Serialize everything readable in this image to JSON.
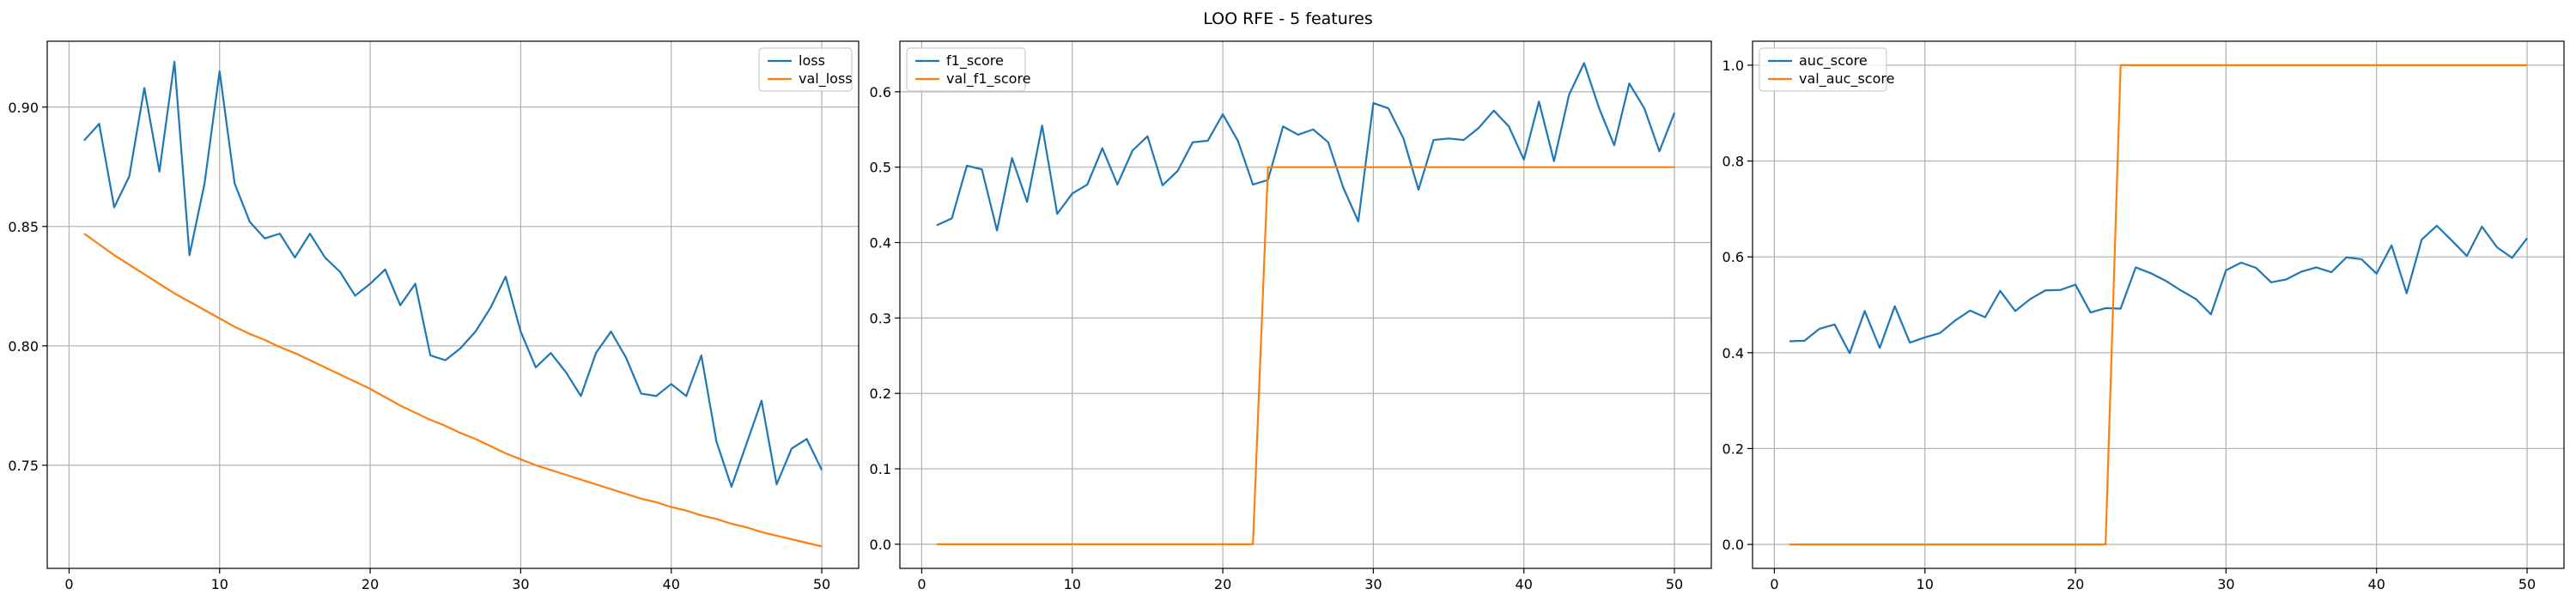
{
  "figure": {
    "title": "LOO RFE - 5 features"
  },
  "chart_data": [
    {
      "type": "line",
      "title": "",
      "xlabel": "",
      "ylabel": "",
      "xlim": [
        -1.45,
        52.45
      ],
      "ylim": [
        0.7068,
        0.9276
      ],
      "xticks": [
        0,
        10,
        20,
        30,
        40,
        50
      ],
      "yticks": [
        0.75,
        0.8,
        0.85,
        0.9
      ],
      "ytick_labels": [
        "0.75",
        "0.80",
        "0.85",
        "0.90"
      ],
      "grid": true,
      "legend_position": "top-right",
      "x": [
        1,
        2,
        3,
        4,
        5,
        6,
        7,
        8,
        9,
        10,
        11,
        12,
        13,
        14,
        15,
        16,
        17,
        18,
        19,
        20,
        21,
        22,
        23,
        24,
        25,
        26,
        27,
        28,
        29,
        30,
        31,
        32,
        33,
        34,
        35,
        36,
        37,
        38,
        39,
        40,
        41,
        42,
        43,
        44,
        45,
        46,
        47,
        48,
        49,
        50
      ],
      "series": [
        {
          "name": "loss",
          "color": "#1f77b4",
          "values": [
            0.886,
            0.893,
            0.858,
            0.871,
            0.908,
            0.873,
            0.919,
            0.838,
            0.868,
            0.915,
            0.868,
            0.852,
            0.845,
            0.847,
            0.837,
            0.847,
            0.837,
            0.831,
            0.821,
            0.826,
            0.832,
            0.817,
            0.826,
            0.796,
            0.794,
            0.799,
            0.806,
            0.816,
            0.829,
            0.806,
            0.791,
            0.797,
            0.789,
            0.779,
            0.797,
            0.806,
            0.795,
            0.78,
            0.779,
            0.784,
            0.779,
            0.796,
            0.76,
            0.741,
            0.759,
            0.777,
            0.742,
            0.757,
            0.761,
            0.748
          ]
        },
        {
          "name": "val_loss",
          "color": "#ff7f0e",
          "values": [
            0.847,
            0.8425,
            0.838,
            0.834,
            0.83,
            0.826,
            0.822,
            0.8185,
            0.815,
            0.8115,
            0.808,
            0.805,
            0.8025,
            0.7995,
            0.797,
            0.794,
            0.791,
            0.788,
            0.785,
            0.782,
            0.7785,
            0.775,
            0.772,
            0.769,
            0.7665,
            0.7635,
            0.761,
            0.758,
            0.755,
            0.7525,
            0.75,
            0.748,
            0.746,
            0.744,
            0.742,
            0.74,
            0.738,
            0.736,
            0.7345,
            0.7325,
            0.731,
            0.729,
            0.7275,
            0.7255,
            0.724,
            0.722,
            0.7205,
            0.719,
            0.7175,
            0.716
          ]
        }
      ]
    },
    {
      "type": "line",
      "title": "",
      "xlabel": "",
      "ylabel": "",
      "xlim": [
        -1.45,
        52.45
      ],
      "ylim": [
        -0.032,
        0.667
      ],
      "xticks": [
        0,
        10,
        20,
        30,
        40,
        50
      ],
      "yticks": [
        0.0,
        0.1,
        0.2,
        0.3,
        0.4,
        0.5,
        0.6
      ],
      "ytick_labels": [
        "0.0",
        "0.1",
        "0.2",
        "0.3",
        "0.4",
        "0.5",
        "0.6"
      ],
      "grid": true,
      "legend_position": "top-left",
      "x": [
        1,
        2,
        3,
        4,
        5,
        6,
        7,
        8,
        9,
        10,
        11,
        12,
        13,
        14,
        15,
        16,
        17,
        18,
        19,
        20,
        21,
        22,
        23,
        24,
        25,
        26,
        27,
        28,
        29,
        30,
        31,
        32,
        33,
        34,
        35,
        36,
        37,
        38,
        39,
        40,
        41,
        42,
        43,
        44,
        45,
        46,
        47,
        48,
        49,
        50
      ],
      "series": [
        {
          "name": "f1_score",
          "color": "#1f77b4",
          "values": [
            0.423,
            0.432,
            0.502,
            0.497,
            0.416,
            0.512,
            0.454,
            0.555,
            0.438,
            0.465,
            0.477,
            0.525,
            0.477,
            0.522,
            0.541,
            0.476,
            0.495,
            0.533,
            0.535,
            0.57,
            0.535,
            0.477,
            0.483,
            0.554,
            0.543,
            0.55,
            0.533,
            0.473,
            0.428,
            0.585,
            0.578,
            0.538,
            0.47,
            0.536,
            0.538,
            0.536,
            0.552,
            0.575,
            0.554,
            0.51,
            0.587,
            0.508,
            0.596,
            0.638,
            0.578,
            0.529,
            0.611,
            0.578,
            0.521,
            0.572
          ]
        },
        {
          "name": "val_f1_score",
          "color": "#ff7f0e",
          "values": [
            0,
            0,
            0,
            0,
            0,
            0,
            0,
            0,
            0,
            0,
            0,
            0,
            0,
            0,
            0,
            0,
            0,
            0,
            0,
            0,
            0,
            0,
            0.5,
            0.5,
            0.5,
            0.5,
            0.5,
            0.5,
            0.5,
            0.5,
            0.5,
            0.5,
            0.5,
            0.5,
            0.5,
            0.5,
            0.5,
            0.5,
            0.5,
            0.5,
            0.5,
            0.5,
            0.5,
            0.5,
            0.5,
            0.5,
            0.5,
            0.5,
            0.5,
            0.5
          ]
        }
      ]
    },
    {
      "type": "line",
      "title": "",
      "xlabel": "",
      "ylabel": "",
      "xlim": [
        -1.45,
        52.45
      ],
      "ylim": [
        -0.05,
        1.05
      ],
      "xticks": [
        0,
        10,
        20,
        30,
        40,
        50
      ],
      "yticks": [
        0.0,
        0.2,
        0.4,
        0.6,
        0.8,
        1.0
      ],
      "ytick_labels": [
        "0.0",
        "0.2",
        "0.4",
        "0.6",
        "0.8",
        "1.0"
      ],
      "grid": true,
      "legend_position": "top-left",
      "x": [
        1,
        2,
        3,
        4,
        5,
        6,
        7,
        8,
        9,
        10,
        11,
        12,
        13,
        14,
        15,
        16,
        17,
        18,
        19,
        20,
        21,
        22,
        23,
        24,
        25,
        26,
        27,
        28,
        29,
        30,
        31,
        32,
        33,
        34,
        35,
        36,
        37,
        38,
        39,
        40,
        41,
        42,
        43,
        44,
        45,
        46,
        47,
        48,
        49,
        50
      ],
      "series": [
        {
          "name": "auc_score",
          "color": "#1f77b4",
          "values": [
            0.424,
            0.425,
            0.45,
            0.459,
            0.399,
            0.487,
            0.41,
            0.497,
            0.421,
            0.432,
            0.441,
            0.467,
            0.488,
            0.474,
            0.529,
            0.487,
            0.512,
            0.53,
            0.531,
            0.542,
            0.484,
            0.493,
            0.492,
            0.578,
            0.566,
            0.55,
            0.53,
            0.512,
            0.48,
            0.572,
            0.588,
            0.577,
            0.547,
            0.553,
            0.569,
            0.578,
            0.568,
            0.599,
            0.595,
            0.565,
            0.624,
            0.524,
            0.636,
            0.665,
            0.634,
            0.602,
            0.663,
            0.62,
            0.598,
            0.639
          ]
        },
        {
          "name": "val_auc_score",
          "color": "#ff7f0e",
          "values": [
            0,
            0,
            0,
            0,
            0,
            0,
            0,
            0,
            0,
            0,
            0,
            0,
            0,
            0,
            0,
            0,
            0,
            0,
            0,
            0,
            0,
            0,
            1,
            1,
            1,
            1,
            1,
            1,
            1,
            1,
            1,
            1,
            1,
            1,
            1,
            1,
            1,
            1,
            1,
            1,
            1,
            1,
            1,
            1,
            1,
            1,
            1,
            1,
            1,
            1
          ]
        }
      ]
    }
  ]
}
